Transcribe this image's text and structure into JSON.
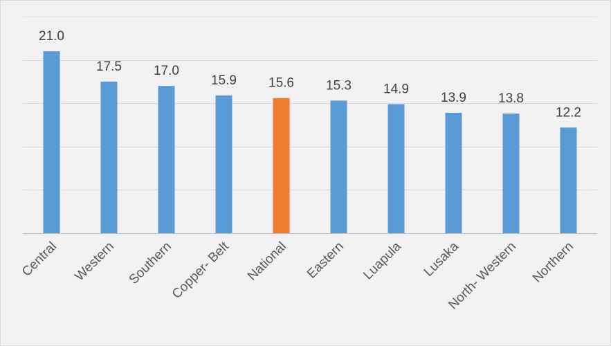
{
  "chart_data": {
    "type": "bar",
    "title": "",
    "xlabel": "",
    "ylabel": "",
    "categories": [
      "Central",
      "Western",
      "Southern",
      "Copper- Belt",
      "National",
      "Eastern",
      "Luapula",
      "Lusaka",
      "North- Western",
      "Northern"
    ],
    "values": [
      21.0,
      17.5,
      17.0,
      15.9,
      15.6,
      15.3,
      14.9,
      13.9,
      13.8,
      12.2
    ],
    "value_labels": [
      "21.0",
      "17.5",
      "17.0",
      "15.9",
      "15.6",
      "15.3",
      "14.9",
      "13.9",
      "13.8",
      "12.2"
    ],
    "ylim": [
      0,
      25
    ],
    "y_gridline_step": 5,
    "y_tick_labels_shown": false,
    "grid": true,
    "legend": "none",
    "colors": {
      "default_bar": "#5b9bd5",
      "highlight_bar": "#ed7d31",
      "gridline": "#d9d9d9",
      "background": "#f2f2f2"
    },
    "highlight_category": "National"
  }
}
